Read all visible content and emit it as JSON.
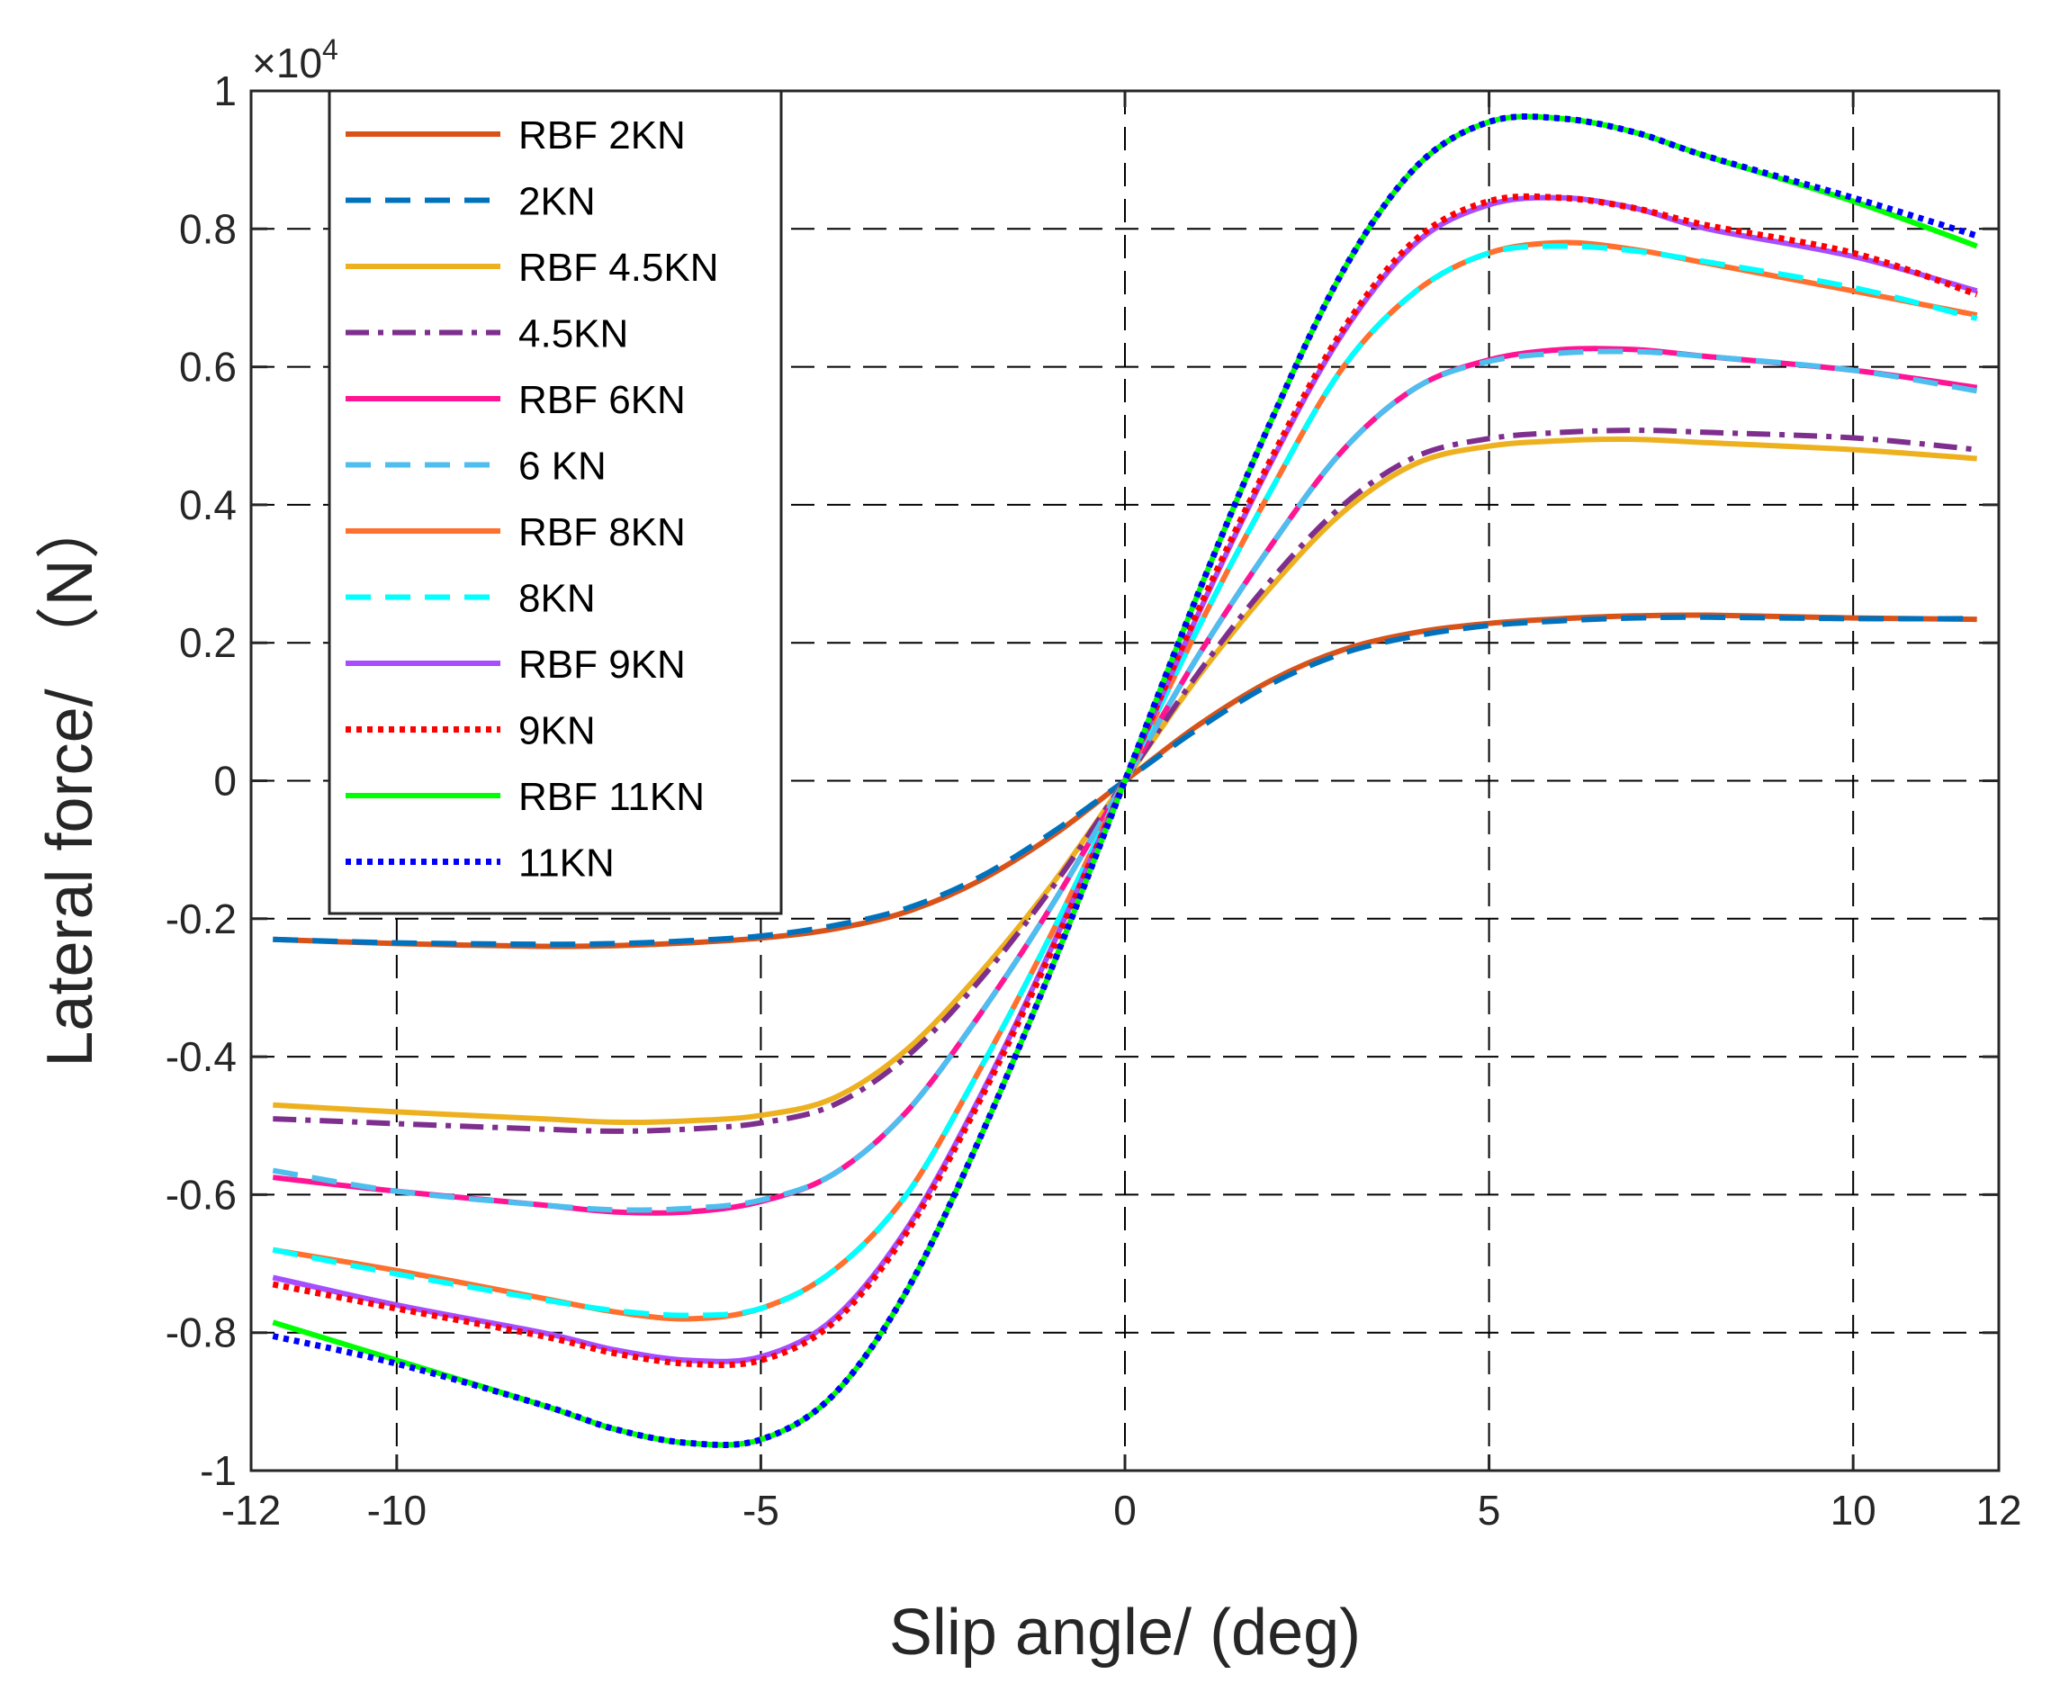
{
  "chart_data": {
    "type": "line",
    "xlabel": "Slip angle/ (deg)",
    "ylabel": "Lateral force/ （N）",
    "xlim": [
      -12,
      12
    ],
    "ylim": [
      -1,
      1
    ],
    "y_exponent_base": "×10",
    "y_exponent_power": "4",
    "grid": true,
    "legend_position": "top-left",
    "x_ticks": [
      -12,
      -10,
      -5,
      0,
      5,
      10,
      12
    ],
    "x_tick_labels": [
      "-12",
      "-10",
      "-5",
      "0",
      "5",
      "10",
      "12"
    ],
    "y_ticks": [
      -1,
      -0.8,
      -0.6,
      -0.4,
      -0.2,
      0,
      0.2,
      0.4,
      0.6,
      0.8,
      1
    ],
    "y_tick_labels": [
      "-1",
      "-0.8",
      "-0.6",
      "-0.4",
      "-0.2",
      "0",
      "0.2",
      "0.4",
      "0.6",
      "0.8",
      "1"
    ],
    "x": [
      -11.7,
      -10,
      -8,
      -7,
      -6,
      -5,
      -4,
      -3,
      -2,
      -1,
      0,
      1,
      2,
      3,
      4,
      5,
      6,
      7,
      8,
      10,
      11.7
    ],
    "series": [
      {
        "name": "RBF 2KN",
        "color": "#D95319",
        "style": "solid",
        "values": [
          -0.23,
          -0.236,
          -0.24,
          -0.239,
          -0.235,
          -0.228,
          -0.215,
          -0.19,
          -0.145,
          -0.08,
          0,
          0.08,
          0.145,
          0.19,
          0.215,
          0.228,
          0.235,
          0.239,
          0.24,
          0.236,
          0.234
        ]
      },
      {
        "name": "2KN",
        "color": "#0072BD",
        "style": "dashed",
        "values": [
          -0.23,
          -0.235,
          -0.237,
          -0.236,
          -0.232,
          -0.225,
          -0.21,
          -0.185,
          -0.14,
          -0.075,
          0,
          0.075,
          0.14,
          0.185,
          0.21,
          0.225,
          0.232,
          0.236,
          0.237,
          0.235,
          0.235
        ]
      },
      {
        "name": "RBF 4.5KN",
        "color": "#EDB120",
        "style": "solid",
        "values": [
          -0.47,
          -0.48,
          -0.49,
          -0.495,
          -0.493,
          -0.485,
          -0.46,
          -0.39,
          -0.28,
          -0.15,
          0,
          0.15,
          0.28,
          0.39,
          0.46,
          0.485,
          0.493,
          0.495,
          0.49,
          0.48,
          0.467
        ]
      },
      {
        "name": "4.5KN",
        "color": "#7E2F8E",
        "style": "dashdot",
        "values": [
          -0.49,
          -0.497,
          -0.505,
          -0.508,
          -0.505,
          -0.496,
          -0.47,
          -0.4,
          -0.29,
          -0.155,
          0,
          0.155,
          0.29,
          0.4,
          0.47,
          0.496,
          0.505,
          0.508,
          0.505,
          0.497,
          0.48
        ]
      },
      {
        "name": "RBF 6KN",
        "color": "#FF1493",
        "style": "solid",
        "values": [
          -0.575,
          -0.595,
          -0.615,
          -0.625,
          -0.625,
          -0.61,
          -0.57,
          -0.48,
          -0.34,
          -0.18,
          0,
          0.18,
          0.34,
          0.48,
          0.57,
          0.61,
          0.625,
          0.625,
          0.615,
          0.595,
          0.57
        ]
      },
      {
        "name": "6 KN",
        "color": "#4DBEEE",
        "style": "dashed",
        "values": [
          -0.565,
          -0.595,
          -0.615,
          -0.622,
          -0.62,
          -0.608,
          -0.57,
          -0.48,
          -0.34,
          -0.18,
          0,
          0.18,
          0.34,
          0.48,
          0.57,
          0.608,
          0.62,
          0.622,
          0.615,
          0.595,
          0.565
        ]
      },
      {
        "name": "RBF 8KN",
        "color": "#FF6F2E",
        "style": "solid",
        "values": [
          -0.68,
          -0.71,
          -0.75,
          -0.77,
          -0.78,
          -0.765,
          -0.71,
          -0.6,
          -0.42,
          -0.22,
          0,
          0.22,
          0.42,
          0.6,
          0.71,
          0.765,
          0.78,
          0.77,
          0.75,
          0.71,
          0.675
        ]
      },
      {
        "name": "8KN",
        "color": "#00FFFF",
        "style": "dashed",
        "values": [
          -0.68,
          -0.715,
          -0.752,
          -0.768,
          -0.775,
          -0.765,
          -0.71,
          -0.6,
          -0.42,
          -0.22,
          0,
          0.22,
          0.42,
          0.6,
          0.71,
          0.765,
          0.775,
          0.768,
          0.752,
          0.715,
          0.67
        ]
      },
      {
        "name": "RBF 9KN",
        "color": "#A64DFF",
        "style": "solid",
        "values": [
          -0.72,
          -0.76,
          -0.8,
          -0.825,
          -0.84,
          -0.835,
          -0.78,
          -0.65,
          -0.46,
          -0.24,
          0,
          0.24,
          0.46,
          0.65,
          0.78,
          0.835,
          0.845,
          0.83,
          0.8,
          0.76,
          0.71
        ]
      },
      {
        "name": "9KN",
        "color": "#FF0000",
        "style": "dotted",
        "values": [
          -0.73,
          -0.765,
          -0.805,
          -0.83,
          -0.845,
          -0.84,
          -0.785,
          -0.655,
          -0.465,
          -0.245,
          0,
          0.245,
          0.465,
          0.655,
          0.785,
          0.84,
          0.845,
          0.83,
          0.805,
          0.765,
          0.705
        ]
      },
      {
        "name": "RBF 11KN",
        "color": "#00FF00",
        "style": "solid",
        "values": [
          -0.785,
          -0.84,
          -0.905,
          -0.94,
          -0.96,
          -0.955,
          -0.89,
          -0.74,
          -0.52,
          -0.27,
          0,
          0.27,
          0.52,
          0.74,
          0.89,
          0.955,
          0.96,
          0.94,
          0.905,
          0.84,
          0.775
        ]
      },
      {
        "name": "11KN",
        "color": "#0000FF",
        "style": "dotted",
        "values": [
          -0.805,
          -0.845,
          -0.905,
          -0.94,
          -0.96,
          -0.955,
          -0.89,
          -0.74,
          -0.52,
          -0.27,
          0,
          0.27,
          0.52,
          0.74,
          0.89,
          0.955,
          0.96,
          0.94,
          0.905,
          0.845,
          0.79
        ]
      }
    ]
  }
}
